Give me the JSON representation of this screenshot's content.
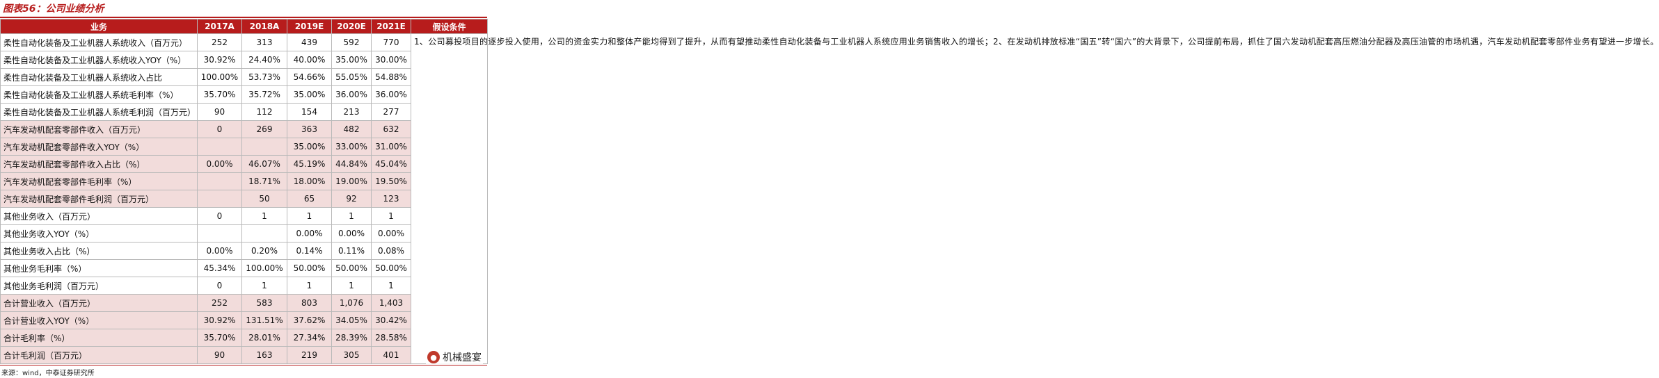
{
  "title": "图表56：公司业绩分析",
  "header": {
    "business": "业务",
    "years": [
      "2017A",
      "2018A",
      "2019E",
      "2020E",
      "2021E"
    ],
    "assumption": "假设条件"
  },
  "rows": [
    {
      "label": "柔性自动化装备及工业机器人系统收入（百万元）",
      "group": "flex",
      "values": [
        "252",
        "313",
        "439",
        "592",
        "770"
      ]
    },
    {
      "label": "柔性自动化装备及工业机器人系统收入YOY（%）",
      "group": "flex",
      "values": [
        "30.92%",
        "24.40%",
        "40.00%",
        "35.00%",
        "30.00%"
      ]
    },
    {
      "label": "柔性自动化装备及工业机器人系统收入占比",
      "group": "flex",
      "values": [
        "100.00%",
        "53.73%",
        "54.66%",
        "55.05%",
        "54.88%"
      ]
    },
    {
      "label": "柔性自动化装备及工业机器人系统毛利率（%）",
      "group": "flex",
      "values": [
        "35.70%",
        "35.72%",
        "35.00%",
        "36.00%",
        "36.00%"
      ]
    },
    {
      "label": "柔性自动化装备及工业机器人系统毛利润（百万元）",
      "group": "flex",
      "values": [
        "90",
        "112",
        "154",
        "213",
        "277"
      ]
    },
    {
      "label": "汽车发动机配套零部件收入（百万元）",
      "group": "auto",
      "values": [
        "0",
        "269",
        "363",
        "482",
        "632"
      ]
    },
    {
      "label": "汽车发动机配套零部件收入YOY（%）",
      "group": "auto",
      "values": [
        "",
        "",
        "35.00%",
        "33.00%",
        "31.00%"
      ]
    },
    {
      "label": "汽车发动机配套零部件收入占比（%）",
      "group": "auto",
      "values": [
        "0.00%",
        "46.07%",
        "45.19%",
        "44.84%",
        "45.04%"
      ]
    },
    {
      "label": "汽车发动机配套零部件毛利率（%）",
      "group": "auto",
      "values": [
        "",
        "18.71%",
        "18.00%",
        "19.00%",
        "19.50%"
      ]
    },
    {
      "label": "汽车发动机配套零部件毛利润（百万元）",
      "group": "auto",
      "values": [
        "",
        "50",
        "65",
        "92",
        "123"
      ]
    },
    {
      "label": "其他业务收入（百万元）",
      "group": "other",
      "values": [
        "0",
        "1",
        "1",
        "1",
        "1"
      ]
    },
    {
      "label": "其他业务收入YOY（%）",
      "group": "other",
      "values": [
        "",
        "",
        "0.00%",
        "0.00%",
        "0.00%"
      ]
    },
    {
      "label": "其他业务收入占比（%）",
      "group": "other",
      "values": [
        "0.00%",
        "0.20%",
        "0.14%",
        "0.11%",
        "0.08%"
      ]
    },
    {
      "label": "其他业务毛利率（%）",
      "group": "other",
      "values": [
        "45.34%",
        "100.00%",
        "50.00%",
        "50.00%",
        "50.00%"
      ]
    },
    {
      "label": "其他业务毛利润（百万元）",
      "group": "other",
      "values": [
        "0",
        "1",
        "1",
        "1",
        "1"
      ]
    },
    {
      "label": "合计营业收入（百万元）",
      "group": "auto",
      "values": [
        "252",
        "583",
        "803",
        "1,076",
        "1,403"
      ]
    },
    {
      "label": "合计营业收入YOY（%）",
      "group": "auto",
      "values": [
        "30.92%",
        "131.51%",
        "37.62%",
        "34.05%",
        "30.42%"
      ]
    },
    {
      "label": "合计毛利率（%）",
      "group": "auto",
      "values": [
        "35.70%",
        "28.01%",
        "27.34%",
        "28.39%",
        "28.58%"
      ]
    },
    {
      "label": "合计毛利润（百万元）",
      "group": "auto",
      "values": [
        "90",
        "163",
        "219",
        "305",
        "401"
      ]
    }
  ],
  "note": "1、公司募投项目的逐步投入使用，公司的资金实力和整体产能均得到了提升，从而有望推动柔性自动化装备与工业机器人系统应用业务销售收入的增长；2、在发动机排放标准“国五”转“国六”的大背景下，公司提前布局，抓住了国六发动机配套高压燃油分配器及高压油管的市场机遇，汽车发动机配套零部件业务有望进一步增长。",
  "source": "来源：wind，中泰证券研究所",
  "brand": "机械盛宴",
  "colors": {
    "accent": "#b71c1c",
    "shade": "#f2dcdb"
  }
}
